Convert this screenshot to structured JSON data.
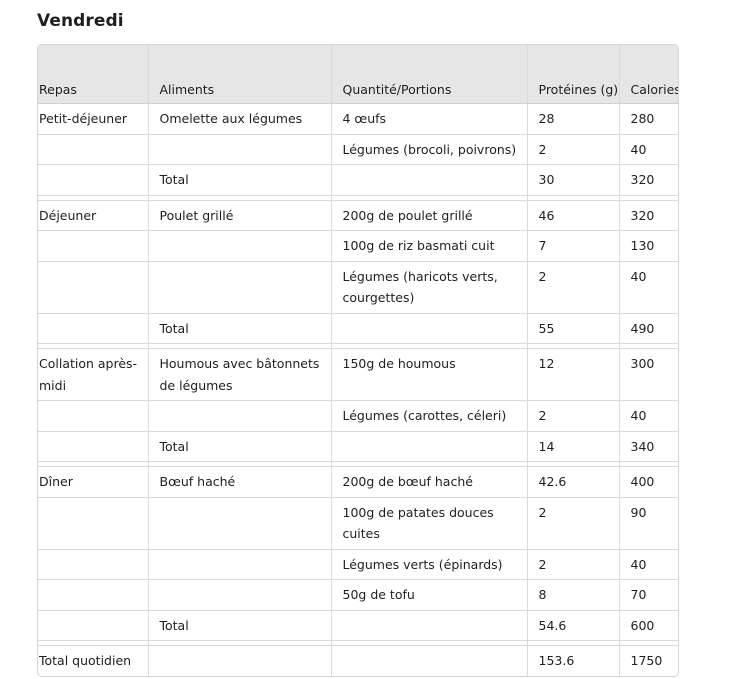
{
  "day_title": "Vendredi",
  "headers": {
    "meal": "Repas",
    "foods": "Aliments",
    "quantity": "Quantité/Portions",
    "protein": "Protéines (g)",
    "calories": "Calories"
  },
  "rows": [
    {
      "meal": "Petit-déjeuner",
      "food": "Omelette aux légumes",
      "quantity": "4 œufs",
      "protein": "28",
      "calories": "280"
    },
    {
      "meal": "",
      "food": "",
      "quantity": "Légumes (brocoli, poivrons)",
      "protein": "2",
      "calories": "40"
    },
    {
      "meal": "",
      "food": "Total",
      "quantity": "",
      "protein": "30",
      "calories": "320"
    },
    {
      "meal": "Déjeuner",
      "food": "Poulet grillé",
      "quantity": "200g de poulet grillé",
      "protein": "46",
      "calories": "320"
    },
    {
      "meal": "",
      "food": "",
      "quantity": "100g de riz basmati cuit",
      "protein": "7",
      "calories": "130"
    },
    {
      "meal": "",
      "food": "",
      "quantity": "Légumes (haricots verts, courgettes)",
      "protein": "2",
      "calories": "40"
    },
    {
      "meal": "",
      "food": "Total",
      "quantity": "",
      "protein": "55",
      "calories": "490"
    },
    {
      "meal": "Collation après-midi",
      "food": "Houmous avec bâtonnets de légumes",
      "quantity": "150g de houmous",
      "protein": "12",
      "calories": "300"
    },
    {
      "meal": "",
      "food": "",
      "quantity": "Légumes (carottes, céleri)",
      "protein": "2",
      "calories": "40"
    },
    {
      "meal": "",
      "food": "Total",
      "quantity": "",
      "protein": "14",
      "calories": "340"
    },
    {
      "meal": "Dîner",
      "food": "Bœuf haché",
      "quantity": "200g de bœuf haché",
      "protein": "42.6",
      "calories": "400"
    },
    {
      "meal": "",
      "food": "",
      "quantity": "100g de patates douces cuites",
      "protein": "2",
      "calories": "90"
    },
    {
      "meal": "",
      "food": "",
      "quantity": "Légumes verts (épinards)",
      "protein": "2",
      "calories": "40"
    },
    {
      "meal": "",
      "food": "",
      "quantity": "50g de tofu",
      "protein": "8",
      "calories": "70"
    },
    {
      "meal": "",
      "food": "Total",
      "quantity": "",
      "protein": "54.6",
      "calories": "600"
    },
    {
      "meal": "Total quotidien",
      "food": "",
      "quantity": "",
      "protein": "153.6",
      "calories": "1750"
    }
  ]
}
